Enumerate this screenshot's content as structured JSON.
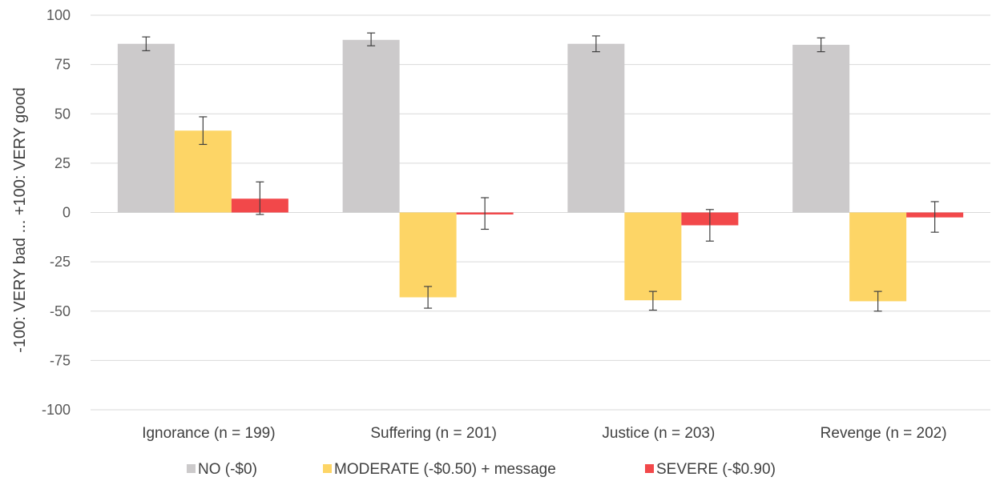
{
  "chart_data": {
    "type": "bar",
    "title": "",
    "xlabel": "",
    "ylabel": "-100: VERY bad ... +100: VERY good",
    "ylim": [
      -100,
      100
    ],
    "yticks": [
      100,
      75,
      50,
      25,
      0,
      -25,
      -50,
      -75,
      -100
    ],
    "categories": [
      "Ignorance (n = 199)",
      "Suffering (n = 201)",
      "Justice (n = 203)",
      "Revenge (n = 202)"
    ],
    "grid": true,
    "legend": "bottom",
    "series": [
      {
        "name": "NO (-$0)",
        "color": "#CCCACB",
        "values": [
          85.5,
          87.5,
          85.5,
          85
        ],
        "err_low": [
          82,
          84.5,
          81.5,
          81.5
        ],
        "err_high": [
          89,
          91,
          89.5,
          88.5
        ]
      },
      {
        "name": "MODERATE (-$0.50) + message",
        "color": "#FDD566",
        "values": [
          41.5,
          -43,
          -44.5,
          -45
        ],
        "err_low": [
          34.5,
          -48.5,
          -49.5,
          -50
        ],
        "err_high": [
          48.5,
          -37.5,
          -40,
          -40
        ]
      },
      {
        "name": "SEVERE (-$0.90)",
        "color": "#F2484A",
        "values": [
          7,
          -1,
          -6.5,
          -2.5
        ],
        "err_low": [
          -1,
          -8.5,
          -14.5,
          -10
        ],
        "err_high": [
          15.5,
          7.5,
          1.5,
          5.5
        ]
      }
    ]
  }
}
